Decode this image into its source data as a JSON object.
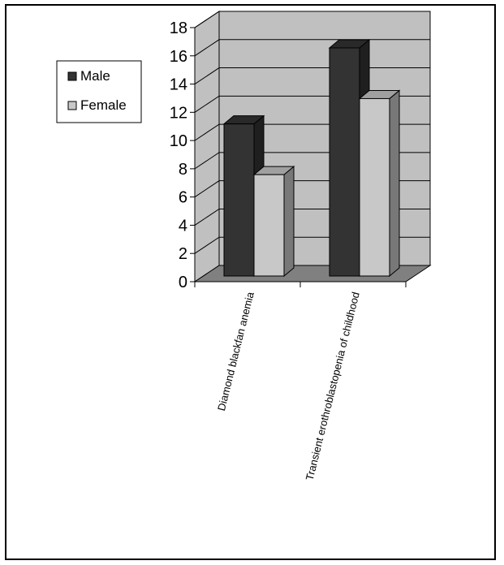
{
  "chart_data": {
    "type": "bar",
    "categories": [
      "Diamond blackfan anemia",
      "Transient erothroblastopenia of childhood"
    ],
    "series": [
      {
        "name": "Male",
        "values": [
          12,
          18
        ]
      },
      {
        "name": "Female",
        "values": [
          8,
          14
        ]
      }
    ],
    "ylim": [
      0,
      18
    ],
    "yticks": [
      "0",
      "2",
      "4",
      "6",
      "8",
      "10",
      "12",
      "14",
      "16",
      "18"
    ],
    "grid": true,
    "legend_position": "left",
    "colors": {
      "Male": "#333333",
      "Female": "#c8c8c8",
      "wall": "#c0c0c0",
      "floor": "#808080"
    }
  }
}
